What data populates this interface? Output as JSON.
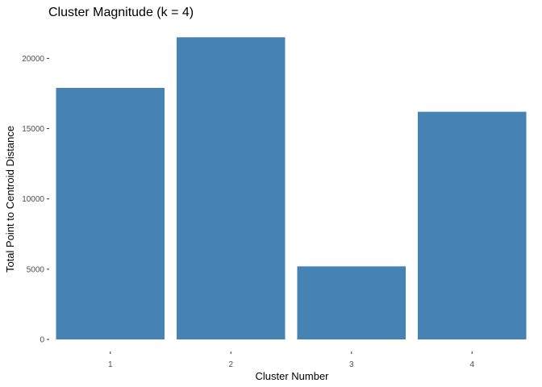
{
  "chart_data": {
    "type": "bar",
    "title": "Cluster Magnitude (k = 4)",
    "xlabel": "Cluster Number",
    "ylabel": "Total Point to Centroid Distance",
    "categories": [
      "1",
      "2",
      "3",
      "4"
    ],
    "values": [
      17900,
      21500,
      5200,
      16200
    ],
    "ylim": [
      0,
      22000
    ],
    "yticks": [
      0,
      5000,
      10000,
      15000,
      20000
    ],
    "ytick_labels": [
      "0",
      "5000",
      "10000",
      "15000",
      "20000"
    ],
    "grid": false,
    "legend": "none",
    "bar_color": "#4682B4"
  }
}
